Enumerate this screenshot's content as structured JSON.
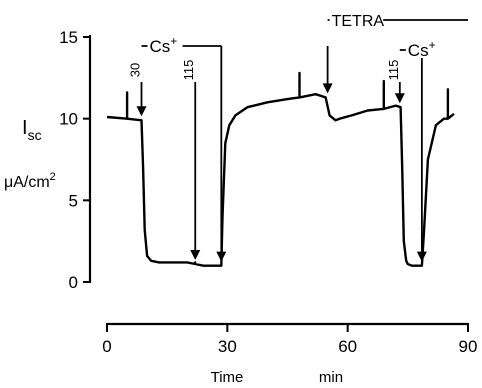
{
  "chart_data": {
    "type": "line",
    "ylabel_main": "I",
    "ylabel_sub": "sc",
    "yunit_base": "μA/cm",
    "yunit_sup": "2",
    "xlabel_left": "Time",
    "xlabel_right": "min",
    "xlim": [
      0,
      90
    ],
    "ylim": [
      0,
      15
    ],
    "xticks": [
      {
        "v": 0,
        "label": "0"
      },
      {
        "v": 30,
        "label": "30"
      },
      {
        "v": 60,
        "label": "60"
      },
      {
        "v": 90,
        "label": "90"
      }
    ],
    "yticks": [
      {
        "v": 0,
        "label": "0"
      },
      {
        "v": 5,
        "label": "5"
      },
      {
        "v": 10,
        "label": "10"
      },
      {
        "v": 15,
        "label": "15"
      }
    ],
    "series": [
      {
        "x": [
          0,
          5,
          5,
          5,
          8.6,
          9.0,
          9.4,
          10,
          11,
          13,
          16,
          20,
          22,
          22,
          22,
          24,
          27,
          28.5,
          28.8,
          29.5,
          30.5,
          32,
          35,
          40,
          45,
          48,
          48,
          48,
          52,
          54.5,
          55.5,
          57,
          58,
          61,
          65,
          69,
          69,
          69,
          72,
          73.2,
          73.6,
          74,
          74.6,
          75,
          76,
          77,
          78.5,
          79,
          80,
          82,
          84,
          85,
          85,
          85,
          86.5
        ],
        "y": [
          10.1,
          10.0,
          11.6,
          10.0,
          9.9,
          7.0,
          3.2,
          1.6,
          1.3,
          1.2,
          1.2,
          1.2,
          1.1,
          1.2,
          1.1,
          1.0,
          1.0,
          1.0,
          4.0,
          8.5,
          9.6,
          10.2,
          10.7,
          11.0,
          11.2,
          11.3,
          12.8,
          11.3,
          11.5,
          11.3,
          10.2,
          9.9,
          10.0,
          10.2,
          10.5,
          10.6,
          12.3,
          10.6,
          10.8,
          10.7,
          7.0,
          2.5,
          1.3,
          1.1,
          1.0,
          1.0,
          1.0,
          3.0,
          7.5,
          9.6,
          10.0,
          10.0,
          11.8,
          10.0,
          10.3
        ]
      }
    ],
    "arrows": [
      {
        "x": 8.6,
        "label": "30"
      },
      {
        "x": 22,
        "label": "115"
      },
      {
        "x": 28.5,
        "label": ""
      },
      {
        "x": 55,
        "label": ""
      },
      {
        "x": 73,
        "label": "115"
      },
      {
        "x": 78.5,
        "label": ""
      }
    ],
    "brackets": [
      {
        "x1": 8.6,
        "x2": 28.5,
        "label": "Cs",
        "sup": "+"
      },
      {
        "x1": 55,
        "x2": 90,
        "label": "TETRA",
        "sup": ""
      },
      {
        "x1": 73,
        "x2": 78.5,
        "label": "Cs",
        "sup": "+"
      }
    ]
  }
}
